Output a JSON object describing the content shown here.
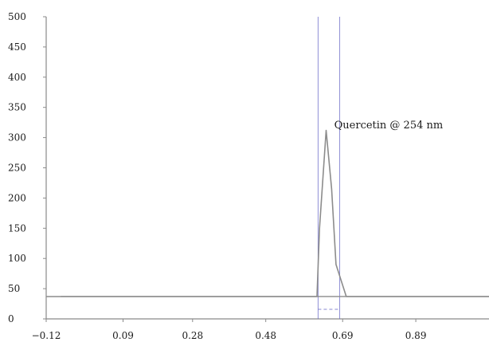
{
  "chart_data": {
    "type": "line",
    "title": "",
    "xlabel": "",
    "ylabel": "",
    "xlim": [
      -0.12,
      1.09
    ],
    "ylim": [
      0,
      500
    ],
    "x_ticks": [
      -0.12,
      0.09,
      0.28,
      0.48,
      0.69,
      0.89
    ],
    "x_tick_labels": [
      "−0.12",
      "0.09",
      "0.28",
      "0.48",
      "0.69",
      "0.89"
    ],
    "y_ticks": [
      0,
      50,
      100,
      150,
      200,
      250,
      300,
      350,
      400,
      450,
      500
    ],
    "y_tick_labels": [
      "0",
      "50",
      "100",
      "150",
      "200",
      "250",
      "300",
      "350",
      "400",
      "450",
      "500"
    ],
    "grid": false,
    "series": [
      {
        "x": [
          -0.12,
          0.62,
          0.627,
          0.645,
          0.66,
          0.672,
          0.7,
          1.09
        ],
        "y": [
          37,
          37,
          150,
          312,
          215,
          90,
          37,
          37
        ]
      }
    ],
    "baseline": {
      "y": 37,
      "x_range": [
        -0.12,
        1.09
      ]
    },
    "peak_window": {
      "x_start": 0.623,
      "x_end": 0.682
    },
    "annotations": [
      {
        "text": "Quercetin @ 254 nm",
        "x": 0.667,
        "y": 315
      }
    ],
    "colors": {
      "axis": "#8a8a8a",
      "signal": "#8c8c8c",
      "baseline": "#8a8a8a",
      "marker_blue": "#6a6ac8"
    }
  }
}
